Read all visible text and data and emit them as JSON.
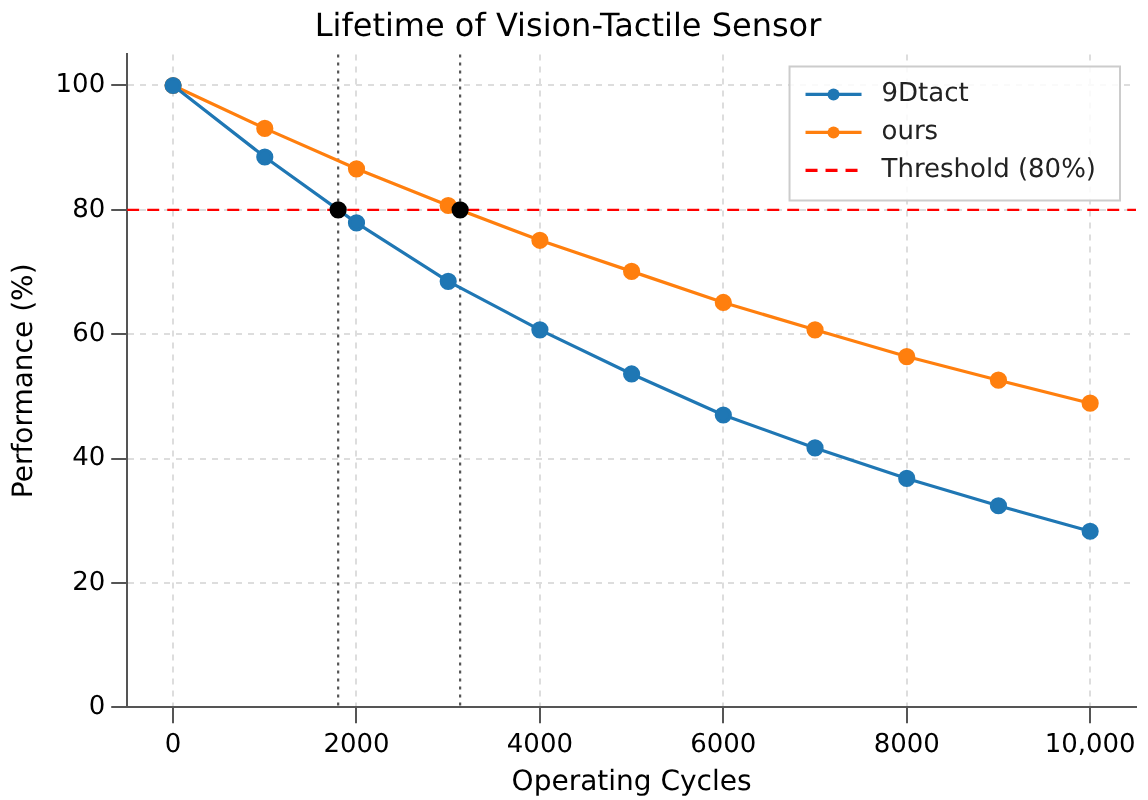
{
  "chart_data": {
    "type": "line",
    "title": "Lifetime of Vision-Tactile Sensor",
    "xlabel": "Operating Cycles",
    "ylabel": "Performance (%)",
    "x": [
      0,
      1000,
      2000,
      3000,
      4000,
      5000,
      6000,
      7000,
      8000,
      9000,
      10000
    ],
    "series": [
      {
        "name": "9Dtact",
        "color": "#1f77b4",
        "values": [
          100,
          88.5,
          77.9,
          68.5,
          60.7,
          53.6,
          47.0,
          41.7,
          36.8,
          32.4,
          28.3
        ]
      },
      {
        "name": "ours",
        "color": "#ff7f0e",
        "values": [
          100,
          93.1,
          86.6,
          80.7,
          75.1,
          70.1,
          65.1,
          60.7,
          56.4,
          52.6,
          48.9
        ]
      },
      {
        "type": "scatter",
        "color": "#000000",
        "x": [
          1800,
          3130
        ],
        "values": [
          80,
          80
        ]
      }
    ],
    "ref_lines": [
      {
        "axis": "y",
        "value": 80,
        "label": "Threshold (80%)",
        "color": "#ff0000",
        "line_style": "dashed"
      },
      {
        "axis": "x",
        "value": 1800,
        "label": null,
        "color": "#555555",
        "line_style": "dotted"
      },
      {
        "axis": "x",
        "value": 3130,
        "label": null,
        "color": "#555555",
        "line_style": "dotted"
      }
    ],
    "xlim": [
      -500,
      10500
    ],
    "xticks": [
      0,
      2000,
      4000,
      6000,
      8000,
      {
        "value": 10000,
        "label": "10,000"
      }
    ],
    "ylim": [
      0,
      105
    ],
    "yticks": [
      0,
      20,
      40,
      60,
      80,
      100
    ],
    "grid": true,
    "legend": "top right",
    "marker": "circle",
    "line_style": "solid"
  }
}
